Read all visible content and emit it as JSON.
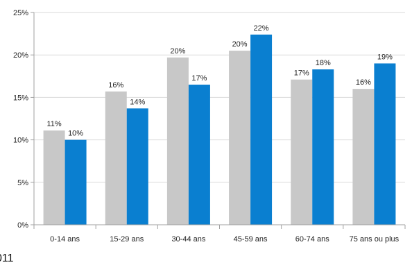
{
  "chart_data": {
    "type": "bar",
    "categories": [
      "0-14 ans",
      "15-29 ans",
      "30-44 ans",
      "45-59 ans",
      "60-74 ans",
      "75 ans ou plus"
    ],
    "series": [
      {
        "values": [
          11.1,
          15.7,
          19.7,
          20.5,
          17.1,
          16.0
        ],
        "labels": [
          "11%",
          "16%",
          "20%",
          "20%",
          "17%",
          "16%"
        ],
        "color": "#c8c8c8"
      },
      {
        "values": [
          10.0,
          13.7,
          16.5,
          22.4,
          18.3,
          19.0
        ],
        "labels": [
          "10%",
          "14%",
          "17%",
          "22%",
          "18%",
          "19%"
        ],
        "color": "#0a7fd0"
      }
    ],
    "ylim": [
      0,
      25
    ],
    "yticks": [
      0,
      5,
      10,
      15,
      20,
      25
    ],
    "ytick_labels": [
      "0%",
      "5%",
      "10%",
      "15%",
      "20%",
      "25%"
    ],
    "grid": true,
    "gridline_color": "#d9d9d9",
    "axis_color": "#a0a0a0",
    "legend": "none"
  },
  "footer": {
    "text": "011"
  }
}
